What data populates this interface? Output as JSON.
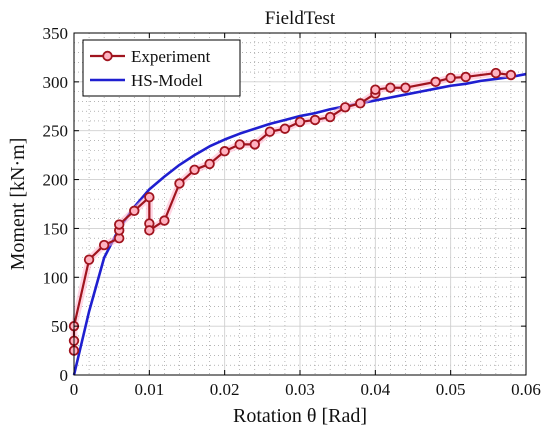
{
  "chart_data": {
    "type": "line",
    "title": "FieldTest",
    "xlabel": "Rotation θ [Rad]",
    "ylabel": "Moment [kN·m]",
    "xlim": [
      0,
      0.06
    ],
    "ylim": [
      0,
      350
    ],
    "xticks": [
      0,
      0.01,
      0.02,
      0.03,
      0.04,
      0.05,
      0.06
    ],
    "xtick_labels": [
      "0",
      "0.01",
      "0.02",
      "0.03",
      "0.04",
      "0.05",
      "0.06"
    ],
    "yticks": [
      0,
      50,
      100,
      150,
      200,
      250,
      300,
      350
    ],
    "ytick_labels": [
      "0",
      "50",
      "100",
      "150",
      "200",
      "250",
      "300",
      "350"
    ],
    "grid": true,
    "legend_position": "top-left",
    "series": [
      {
        "name": "Experiment",
        "color": "#a0141e",
        "marker": "circle",
        "x": [
          0,
          0,
          0,
          0.002,
          0.004,
          0.006,
          0.006,
          0.006,
          0.008,
          0.01,
          0.01,
          0.01,
          0.012,
          0.014,
          0.016,
          0.018,
          0.02,
          0.022,
          0.024,
          0.026,
          0.028,
          0.03,
          0.032,
          0.034,
          0.036,
          0.038,
          0.04,
          0.04,
          0.042,
          0.044,
          0.048,
          0.05,
          0.052,
          0.056,
          0.058
        ],
        "y": [
          25,
          35,
          50,
          118,
          133,
          140,
          148,
          154,
          168,
          182,
          155,
          148,
          158,
          196,
          210,
          216,
          229,
          236,
          236,
          249,
          252,
          259,
          261,
          264,
          274,
          278,
          288,
          292,
          294,
          294,
          300,
          304,
          305,
          309,
          307
        ]
      },
      {
        "name": "HS-Model",
        "color": "#1f1fd0",
        "marker": "none",
        "x": [
          0,
          0.002,
          0.004,
          0.006,
          0.008,
          0.01,
          0.012,
          0.014,
          0.016,
          0.018,
          0.02,
          0.022,
          0.024,
          0.026,
          0.028,
          0.03,
          0.032,
          0.034,
          0.036,
          0.038,
          0.04,
          0.042,
          0.044,
          0.046,
          0.048,
          0.05,
          0.052,
          0.054,
          0.056,
          0.058,
          0.06
        ],
        "y": [
          0,
          65,
          120,
          150,
          172,
          190,
          203,
          215,
          225,
          234,
          241,
          247,
          252,
          257,
          261,
          265,
          268,
          272,
          275,
          278,
          281,
          284,
          287,
          290,
          293,
          296,
          298,
          301,
          303,
          305,
          308
        ]
      }
    ]
  }
}
